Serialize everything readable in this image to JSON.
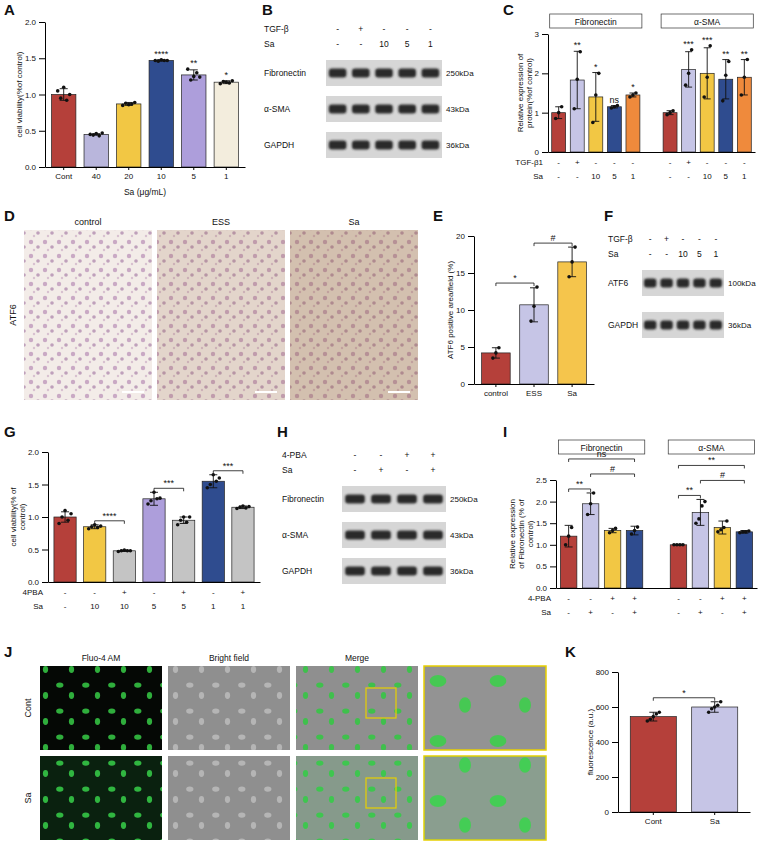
{
  "chart_data": [
    {
      "panel": "A",
      "type": "bar",
      "ylabel": "cell viability(%of control)",
      "xlabel": "Sa (μg/mL)",
      "categories": [
        "Cont",
        "40",
        "20",
        "10",
        "5",
        "1"
      ],
      "values": [
        1.0,
        0.45,
        0.87,
        1.47,
        1.27,
        1.17
      ],
      "errors": [
        0.08,
        0.01,
        0.02,
        0.01,
        0.07,
        0.02
      ],
      "points": [
        [
          1.05,
          0.95,
          1.1,
          0.92,
          1.0
        ],
        [
          0.45,
          0.44,
          0.46,
          0.43,
          0.47
        ],
        [
          0.85,
          0.88,
          0.86,
          0.87,
          0.89
        ],
        [
          1.47,
          1.46,
          1.48,
          1.47,
          1.47
        ],
        [
          1.35,
          1.2,
          1.25,
          1.3,
          1.24
        ],
        [
          1.15,
          1.18,
          1.17,
          1.16,
          1.19
        ]
      ],
      "colors": [
        "#b5403a",
        "#b9b6dc",
        "#f2c744",
        "#2f4c8f",
        "#ad9edb",
        "#f3eddd"
      ],
      "significance": [
        null,
        null,
        null,
        "****",
        "**",
        "*"
      ],
      "ylim": [
        0,
        2
      ],
      "yticks": [
        {
          "value": 0,
          "label": "0.0"
        },
        {
          "value": 0.5,
          "label": "0.5"
        },
        {
          "value": 1,
          "label": "1.0"
        },
        {
          "value": 1.5,
          "label": "1.5"
        },
        {
          "value": 2,
          "label": "2.0"
        }
      ]
    },
    {
      "panel": "C",
      "type": "bar",
      "ylabel": "Relative expression of protein(%of control)",
      "x_rows": [
        {
          "name": "TGF-β1",
          "labels": [
            "-",
            "+",
            "-",
            "-",
            "-"
          ]
        },
        {
          "name": "Sa",
          "labels": [
            "-",
            "-",
            "10",
            "5",
            "1"
          ]
        }
      ],
      "colors": [
        "#b5403a",
        "#c6c5e6",
        "#f2c744",
        "#2f4c8f",
        "#ef8a3c"
      ],
      "groups": [
        {
          "name": "Fibronectin",
          "values": [
            1.0,
            1.83,
            1.4,
            1.15,
            1.45
          ],
          "errors": [
            0.15,
            0.73,
            0.62,
            0.03,
            0.05
          ],
          "points": [
            [
              0.85,
              1.0,
              1.15
            ],
            [
              1.1,
              1.85,
              2.55
            ],
            [
              0.75,
              1.45,
              2.0
            ],
            [
              1.12,
              1.15,
              1.18
            ],
            [
              1.4,
              1.45,
              1.5
            ]
          ],
          "significance": [
            null,
            "**",
            "*",
            "ns",
            "*"
          ]
        },
        {
          "name": "α-SMA",
          "values": [
            1.0,
            2.1,
            2.0,
            1.85,
            1.9
          ],
          "errors": [
            0.05,
            0.45,
            0.65,
            0.5,
            0.45
          ],
          "points": [
            [
              0.95,
              1.0,
              1.05
            ],
            [
              1.7,
              2.0,
              2.6
            ],
            [
              1.4,
              1.9,
              2.7
            ],
            [
              1.3,
              1.95,
              2.3
            ],
            [
              1.45,
              1.9,
              2.35
            ]
          ],
          "significance": [
            null,
            "***",
            "***",
            "**",
            "**"
          ]
        }
      ],
      "ylim": [
        0,
        3
      ],
      "yticks": [
        0,
        1,
        2,
        3
      ]
    },
    {
      "panel": "E",
      "type": "bar",
      "ylabel": "ATF6 positive area/field (%)",
      "categories": [
        "control",
        "ESS",
        "Sa"
      ],
      "values": [
        4.2,
        10.7,
        16.5
      ],
      "errors": [
        0.7,
        2.3,
        2.0
      ],
      "points": [
        [
          3.5,
          4.2,
          4.9
        ],
        [
          8.5,
          10.5,
          13.1
        ],
        [
          14.5,
          16.5,
          18.5
        ]
      ],
      "colors": [
        "#b5403a",
        "#c6c5e6",
        "#f5c54c"
      ],
      "comparisons": [
        {
          "from": 0,
          "to": 1,
          "label": "*"
        },
        {
          "from": 1,
          "to": 2,
          "label": "#"
        }
      ],
      "ylim": [
        0,
        20
      ],
      "yticks": [
        0,
        5,
        10,
        15,
        20
      ]
    },
    {
      "panel": "G",
      "type": "bar",
      "ylabel": "cell viability(% of control)",
      "x_rows": [
        {
          "name": "4PBA",
          "labels": [
            "-",
            "-",
            "+",
            "-",
            "+",
            "-",
            "+"
          ]
        },
        {
          "name": "Sa",
          "labels": [
            "-",
            "10",
            "10",
            "5",
            "5",
            "1",
            "1"
          ]
        }
      ],
      "values": [
        1.0,
        0.85,
        0.48,
        1.28,
        0.95,
        1.55,
        1.15
      ],
      "errors": [
        0.08,
        0.03,
        0.01,
        0.1,
        0.05,
        0.1,
        0.02
      ],
      "points": [
        [
          0.9,
          1.0,
          1.1,
          0.95,
          1.05
        ],
        [
          0.82,
          0.85,
          0.88,
          0.84,
          0.86
        ],
        [
          0.47,
          0.48,
          0.49,
          0.48,
          0.48
        ],
        [
          1.2,
          1.25,
          1.38,
          1.28,
          1.29
        ],
        [
          0.88,
          0.95,
          1.0,
          0.92,
          1.0
        ],
        [
          1.45,
          1.5,
          1.65,
          1.55,
          1.6
        ],
        [
          1.13,
          1.15,
          1.17,
          1.14,
          1.16
        ]
      ],
      "colors": [
        "#b5403a",
        "#f2c744",
        "#c4c4c4",
        "#ad9edb",
        "#c4c4c4",
        "#2f4c8f",
        "#c4c4c4"
      ],
      "comparisons": [
        {
          "from": 1,
          "to": 2,
          "label": "****"
        },
        {
          "from": 3,
          "to": 4,
          "label": "***"
        },
        {
          "from": 5,
          "to": 6,
          "label": "***"
        }
      ],
      "ylim": [
        0,
        2
      ],
      "yticks": [
        {
          "value": 0,
          "label": "0.0"
        },
        {
          "value": 0.5,
          "label": "0.5"
        },
        {
          "value": 1,
          "label": "1.0"
        },
        {
          "value": 1.5,
          "label": "1.5"
        },
        {
          "value": 2,
          "label": "2.0"
        }
      ]
    },
    {
      "panel": "I",
      "type": "bar",
      "ylabel": "Relative expression of Fibronectin (% of control)",
      "x_rows": [
        {
          "name": "4-PBA",
          "labels": [
            "-",
            "-",
            "+",
            "+"
          ]
        },
        {
          "name": "Sa",
          "labels": [
            "-",
            "+",
            "-",
            "+"
          ]
        }
      ],
      "colors": [
        "#b5403a",
        "#c6c5e6",
        "#f2c744",
        "#2f4c8f"
      ],
      "groups": [
        {
          "name": "Fibronectin",
          "values": [
            1.2,
            1.95,
            1.33,
            1.33
          ],
          "errors": [
            0.25,
            0.25,
            0.05,
            0.1
          ],
          "points": [
            [
              1.0,
              1.2,
              1.4
            ],
            [
              1.7,
              1.95,
              2.2
            ],
            [
              1.28,
              1.33,
              1.38
            ],
            [
              1.25,
              1.33,
              1.41
            ]
          ],
          "comparisons": [
            {
              "from": 0,
              "to": 1,
              "label": "**"
            },
            {
              "from": 1,
              "to": 3,
              "label": "#"
            },
            {
              "from": 0,
              "to": 3,
              "label": "ns"
            }
          ]
        },
        {
          "name": "α-SMA",
          "values": [
            1.0,
            1.75,
            1.4,
            1.3
          ],
          "errors": [
            0.01,
            0.3,
            0.15,
            0.03
          ],
          "points": [
            [
              1.0,
              1.0,
              1.0,
              1.0
            ],
            [
              1.5,
              1.6,
              1.9,
              2.0
            ],
            [
              1.3,
              1.35,
              1.4,
              1.55
            ],
            [
              1.28,
              1.3,
              1.3,
              1.32
            ]
          ],
          "comparisons": [
            {
              "from": 0,
              "to": 1,
              "label": "**"
            },
            {
              "from": 1,
              "to": 3,
              "label": "#"
            },
            {
              "from": 0,
              "to": 3,
              "label": "**"
            }
          ]
        }
      ],
      "ylim": [
        0,
        2.5
      ],
      "yticks": [
        {
          "value": 0,
          "label": "0.0"
        },
        {
          "value": 0.5,
          "label": "0.5"
        },
        {
          "value": 1,
          "label": "1.0"
        },
        {
          "value": 1.5,
          "label": "1.5"
        },
        {
          "value": 2,
          "label": "2.0"
        },
        {
          "value": 2.5,
          "label": "2.5"
        }
      ]
    },
    {
      "panel": "K",
      "type": "bar",
      "ylabel": "fluorescence (a.u.)",
      "categories": [
        "Cont",
        "Sa"
      ],
      "values": [
        545,
        600
      ],
      "errors": [
        25,
        30
      ],
      "points": [
        [
          520,
          530,
          545,
          560,
          570
        ],
        [
          570,
          590,
          600,
          610,
          630
        ]
      ],
      "colors": [
        "#b5403a",
        "#c6c5e6"
      ],
      "comparisons": [
        {
          "from": 0,
          "to": 1,
          "label": "*"
        }
      ],
      "ylim": [
        0,
        800
      ],
      "yticks": [
        0,
        200,
        400,
        600,
        800
      ]
    }
  ],
  "blots": [
    {
      "panel": "B",
      "conditions": [
        {
          "name": "TGF-β",
          "labels": [
            "-",
            "+",
            "-",
            "-",
            "-"
          ]
        },
        {
          "name": "Sa",
          "labels": [
            "-",
            "-",
            "10",
            "5",
            "1"
          ]
        }
      ],
      "rows": [
        {
          "name": "Fibronectin",
          "size": "250kDa"
        },
        {
          "name": "α-SMA",
          "size": "43kDa"
        },
        {
          "name": "GAPDH",
          "size": "36kDa"
        }
      ]
    },
    {
      "panel": "F",
      "conditions": [
        {
          "name": "TGF-β",
          "labels": [
            "-",
            "+",
            "-",
            "-",
            "-"
          ]
        },
        {
          "name": "Sa",
          "labels": [
            "-",
            "-",
            "10",
            "5",
            "1"
          ]
        }
      ],
      "rows": [
        {
          "name": "ATF6",
          "size": "100kDa"
        },
        {
          "name": "GAPDH",
          "size": "36kDa"
        }
      ]
    },
    {
      "panel": "H",
      "conditions": [
        {
          "name": "4-PBA",
          "labels": [
            "-",
            "-",
            "+",
            "+"
          ]
        },
        {
          "name": "Sa",
          "labels": [
            "-",
            "+",
            "-",
            "+"
          ]
        }
      ],
      "rows": [
        {
          "name": "Fibronectin",
          "size": "250kDa"
        },
        {
          "name": "α-SMA",
          "size": "43kDa"
        },
        {
          "name": "GAPDH",
          "size": "36kDa"
        }
      ]
    }
  ],
  "images": [
    {
      "panel": "D",
      "row_label": "ATF6",
      "titles": [
        "control",
        "ESS",
        "Sa"
      ]
    },
    {
      "panel": "J",
      "columns": [
        "Fluo-4 AM",
        "Bright field",
        "Merge"
      ],
      "rows": [
        "Cont",
        "Sa"
      ]
    }
  ]
}
